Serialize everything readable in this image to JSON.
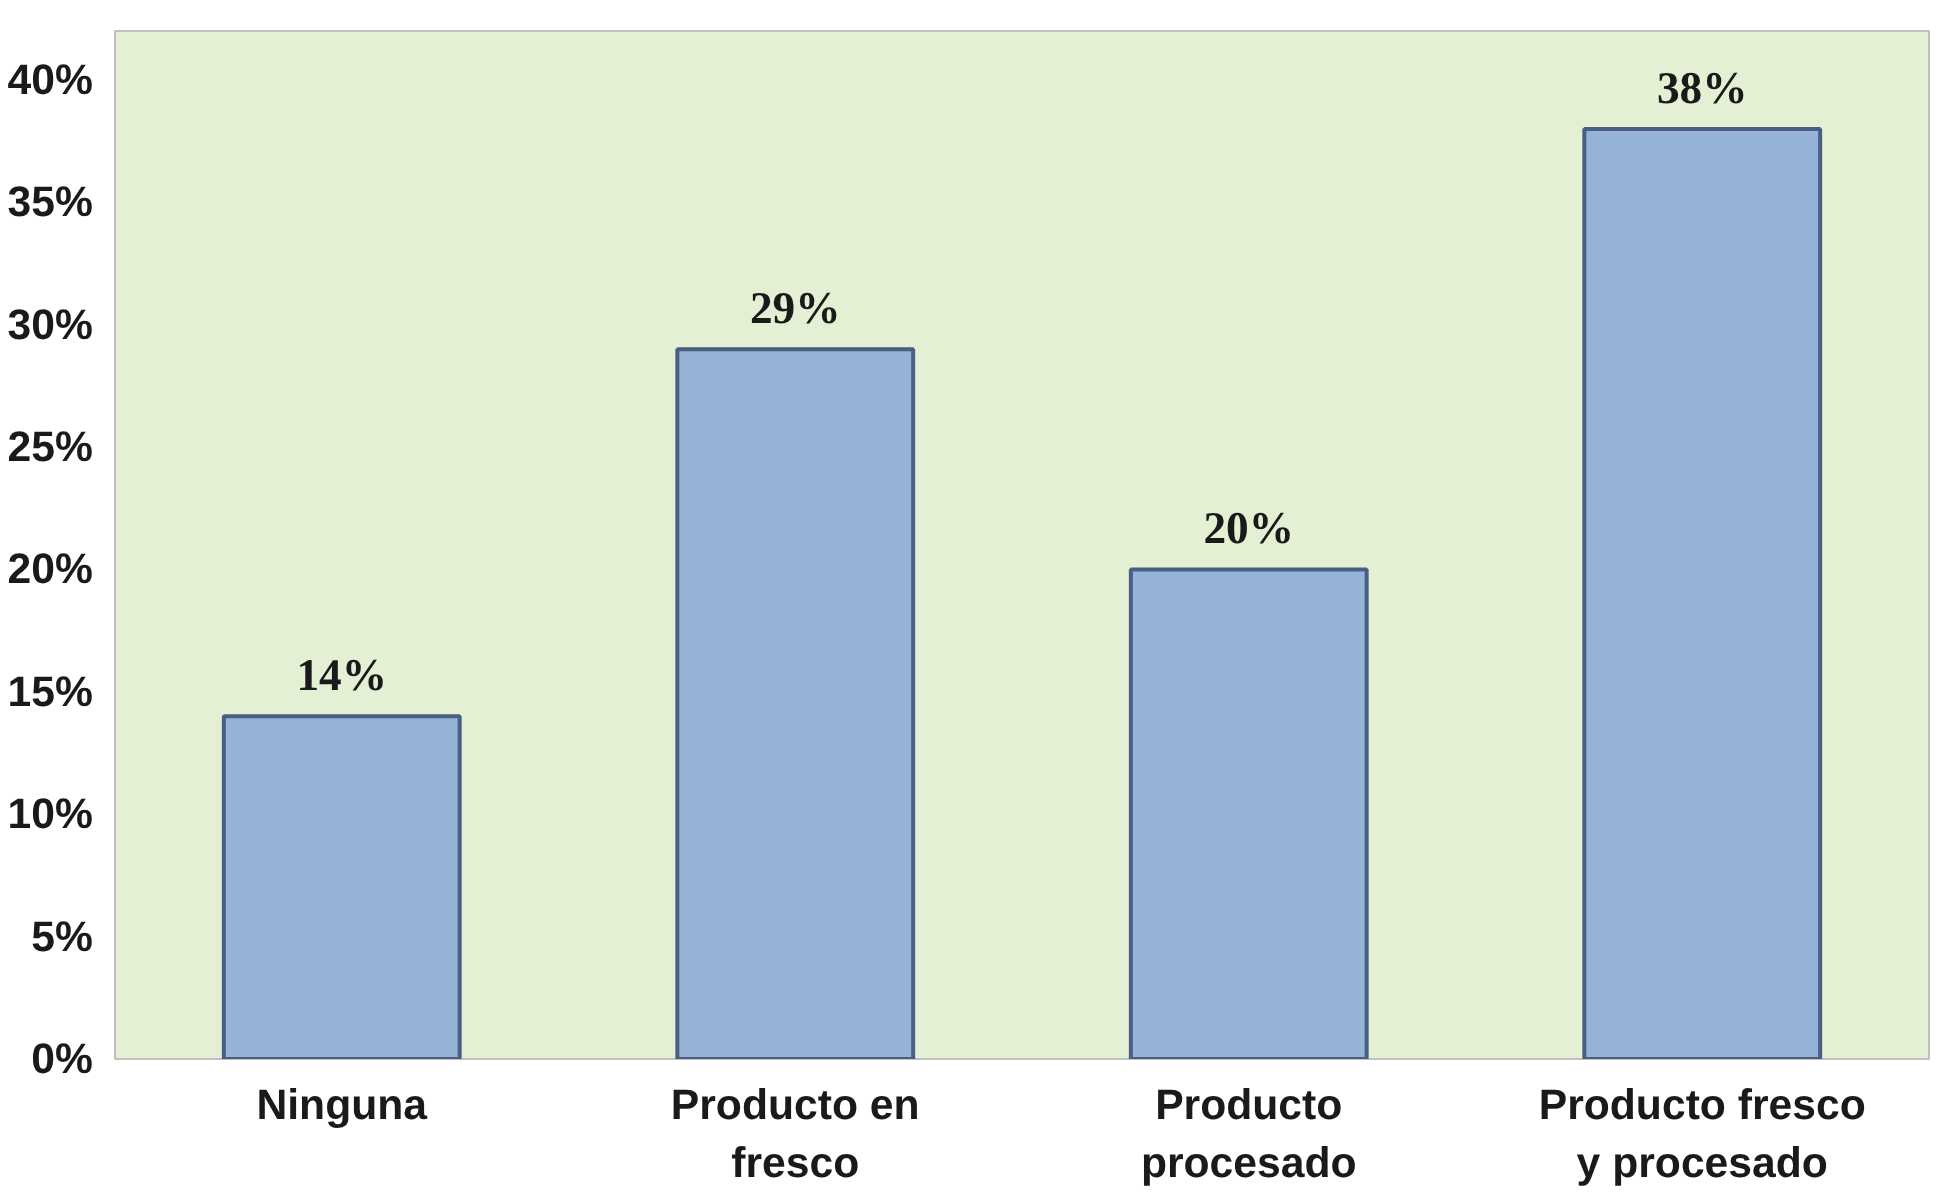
{
  "chart_data": {
    "type": "bar",
    "categories": [
      "Ninguna",
      "Producto en fresco",
      "Producto procesado",
      "Producto fresco y procesado"
    ],
    "values": [
      14,
      29,
      20,
      38
    ],
    "value_labels": [
      "14%",
      "29%",
      "20%",
      "38%"
    ],
    "color": "#95b3d7",
    "ylim": [
      0,
      42
    ],
    "yticks": [
      {
        "value": 0,
        "label": "0%"
      },
      {
        "value": 5,
        "label": "5%"
      },
      {
        "value": 10,
        "label": "10%"
      },
      {
        "value": 15,
        "label": "15%"
      },
      {
        "value": 20,
        "label": "20%"
      },
      {
        "value": 25,
        "label": "25%"
      },
      {
        "value": 30,
        "label": "30%"
      },
      {
        "value": 35,
        "label": "35%"
      },
      {
        "value": 40,
        "label": "40%"
      }
    ],
    "grid": false
  }
}
